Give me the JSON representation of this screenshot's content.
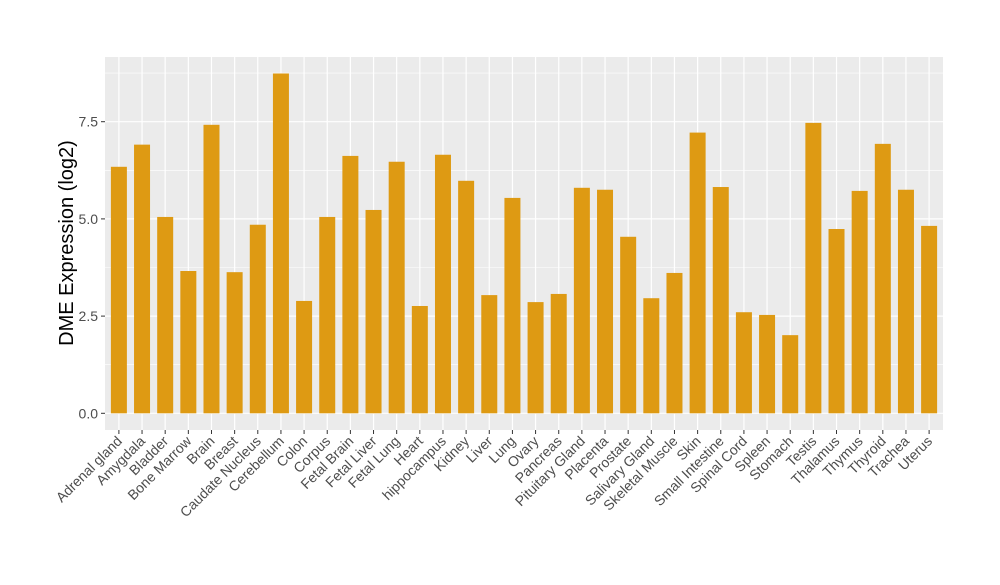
{
  "chart_data": {
    "type": "bar",
    "title": "",
    "xlabel": "",
    "ylabel": "DME Expression (log2)",
    "ylim": [
      -0.45,
      9.15
    ],
    "yticks": [
      0.0,
      2.5,
      5.0,
      7.5
    ],
    "ytick_labels": [
      "0.0",
      "2.5",
      "5.0",
      "7.5"
    ],
    "grid": true,
    "bar_color": "#DE9A13",
    "panel_color": "#EBEBEB",
    "categories": [
      "Adrenal gland",
      "Amygdala",
      "Bladder",
      "Bone Marrow",
      "Brain",
      "Breast",
      "Caudate Nucleus",
      "Cerebellum",
      "Colon",
      "Corpus",
      "Fetal Brain",
      "Fetal Liver",
      "Fetal Lung",
      "Heart",
      "hippocampus",
      "Kidney",
      "Liver",
      "Lung",
      "Ovary",
      "Pancreas",
      "Pituitary Gland",
      "Placenta",
      "Prostate",
      "Salivary Gland",
      "Skeletal Muscle",
      "Skin",
      "Small Intestine",
      "Spinal Cord",
      "Spleen",
      "Stomach",
      "Testis",
      "Thalamus",
      "Thymus",
      "Thyroid",
      "Trachea",
      "Uterus"
    ],
    "values": [
      6.34,
      6.91,
      5.05,
      3.66,
      7.42,
      3.63,
      4.85,
      8.74,
      2.89,
      5.05,
      6.62,
      5.23,
      6.47,
      2.76,
      6.65,
      5.98,
      3.04,
      5.54,
      2.86,
      3.07,
      5.8,
      5.75,
      4.54,
      2.96,
      3.61,
      7.22,
      5.82,
      2.6,
      2.53,
      2.01,
      7.47,
      4.74,
      5.72,
      6.93,
      5.75,
      4.82
    ]
  }
}
